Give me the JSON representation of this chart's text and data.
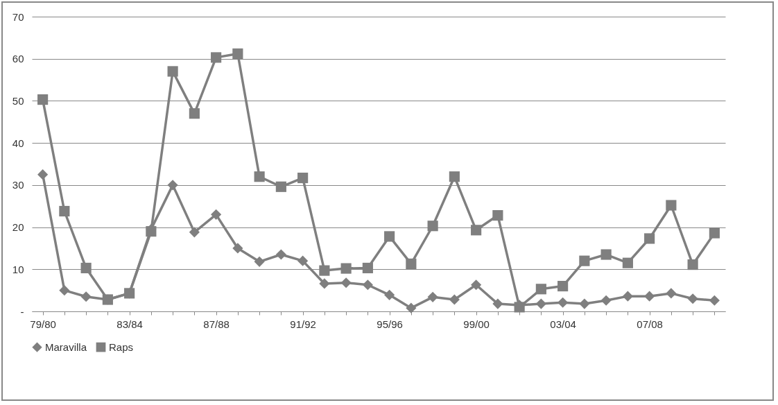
{
  "chart_data": {
    "type": "line",
    "categories": [
      "79/80",
      null,
      null,
      null,
      "83/84",
      null,
      null,
      null,
      "87/88",
      null,
      null,
      null,
      "91/92",
      null,
      null,
      null,
      "95/96",
      null,
      null,
      null,
      "99/00",
      null,
      null,
      null,
      "03/04",
      null,
      null,
      null,
      "07/08",
      null,
      null,
      null
    ],
    "series": [
      {
        "name": "Maravilla",
        "color": "#7f7f7f",
        "marker": "diamond",
        "values": [
          32.5,
          5,
          3.5,
          2.8,
          4.3,
          19.5,
          30,
          18.8,
          23,
          15,
          11.8,
          13.5,
          12,
          6.6,
          6.8,
          6.3,
          3.9,
          0.8,
          3.4,
          2.8,
          6.3,
          1.8,
          1.5,
          1.8,
          2.1,
          1.8,
          2.6,
          3.6,
          3.6,
          4.3,
          3,
          2.6
        ]
      },
      {
        "name": "Raps",
        "color": "#7f7f7f",
        "marker": "square",
        "values": [
          50.3,
          23.8,
          10.3,
          2.8,
          4.3,
          19,
          57,
          47,
          60.3,
          61.2,
          32,
          29.6,
          31.7,
          9.7,
          10.2,
          10.3,
          17.8,
          11.3,
          20.3,
          32,
          19.3,
          22.8,
          1,
          5.3,
          6,
          12,
          13.5,
          11.5,
          17.3,
          25.2,
          11.1,
          18.6
        ]
      }
    ],
    "ylim": [
      0,
      70
    ],
    "yticks": [
      {
        "value": 0,
        "label": "-"
      },
      10,
      20,
      30,
      40,
      50,
      60,
      70
    ],
    "grid": "y",
    "legend": "bottom",
    "line_style": "solid"
  }
}
